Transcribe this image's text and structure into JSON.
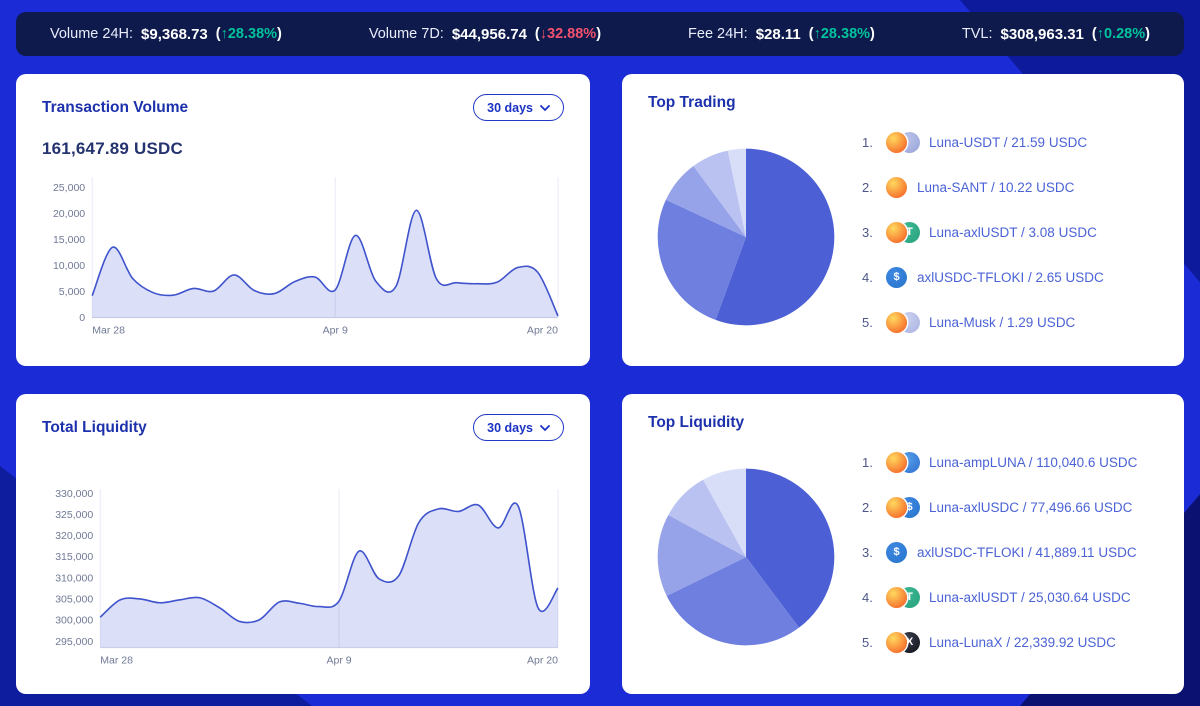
{
  "stats_bar": {
    "paren_open": "(",
    "paren_close": ")",
    "items": [
      {
        "label": "Volume 24H:",
        "value": "$9,368.73",
        "change": "↑28.38%",
        "direction": "up"
      },
      {
        "label": "Volume 7D:",
        "value": "$44,956.74",
        "change": "↓32.88%",
        "direction": "down"
      },
      {
        "label": "Fee 24H:",
        "value": "$28.11",
        "change": "↑28.38%",
        "direction": "up"
      },
      {
        "label": "TVL:",
        "value": "$308,963.31",
        "change": "↑0.28%",
        "direction": "up"
      }
    ]
  },
  "colors": {
    "page_bg": "#1b2bd6",
    "stats_bg": "#0f1a4c",
    "accent_blue": "#1a33c4",
    "up_green": "#00c39c",
    "down_red": "#f4516c",
    "chart_line": "#3f53cc",
    "chart_fill": "#d6dbf6",
    "pie_ramp": [
      "#4c5fd5",
      "#6e7fdf",
      "#96a3e9",
      "#b9c2f1",
      "#d9def8"
    ]
  },
  "cards": {
    "transaction_volume": {
      "title": "Transaction Volume",
      "period_selector": "30 days",
      "headline_value": "161,647.89 USDC"
    },
    "total_liquidity": {
      "title": "Total Liquidity",
      "period_selector": "30 days"
    },
    "top_trading": {
      "title": "Top Trading",
      "items": [
        {
          "rank": "1.",
          "label": "Luna-USDT / 21.59 USDC",
          "icons": [
            "luna",
            "moon"
          ]
        },
        {
          "rank": "2.",
          "label": "Luna-SANT / 10.22 USDC",
          "icons": [
            "luna"
          ]
        },
        {
          "rank": "3.",
          "label": "Luna-axlUSDT / 3.08 USDC",
          "icons": [
            "luna",
            "usdt"
          ]
        },
        {
          "rank": "4.",
          "label": "axlUSDC-TFLOKI / 2.65 USDC",
          "icons": [
            "usdc"
          ]
        },
        {
          "rank": "5.",
          "label": "Luna-Musk / 1.29 USDC",
          "icons": [
            "luna",
            "musk"
          ]
        }
      ]
    },
    "top_liquidity": {
      "title": "Top Liquidity",
      "items": [
        {
          "rank": "1.",
          "label": "Luna-ampLUNA / 110,040.6 USDC",
          "icons": [
            "luna",
            "ampluna"
          ]
        },
        {
          "rank": "2.",
          "label": "Luna-axlUSDC / 77,496.66 USDC",
          "icons": [
            "luna",
            "usdc"
          ]
        },
        {
          "rank": "3.",
          "label": "axlUSDC-TFLOKI / 41,889.11 USDC",
          "icons": [
            "usdc"
          ]
        },
        {
          "rank": "4.",
          "label": "Luna-axlUSDT / 25,030.64 USDC",
          "icons": [
            "luna",
            "usdt"
          ]
        },
        {
          "rank": "5.",
          "label": "Luna-LunaX / 22,339.92 USDC",
          "icons": [
            "luna",
            "lunax"
          ]
        }
      ]
    }
  },
  "icon_styles": {
    "luna": {
      "c1": "#ffd95e",
      "c2": "#f4511e",
      "glyph": "",
      "fg": "#ffffff"
    },
    "moon": {
      "c1": "#bcc4ea",
      "c2": "#98a3d8",
      "glyph": "",
      "fg": "#ffffff"
    },
    "usdt": {
      "c1": "#3db894",
      "c2": "#26a17b",
      "glyph": "T",
      "fg": "#ffffff"
    },
    "usdc": {
      "c1": "#3e87e2",
      "c2": "#2775ca",
      "glyph": "$",
      "fg": "#ffffff"
    },
    "ampluna": {
      "c1": "#56a0e8",
      "c2": "#2e6fd0",
      "glyph": "",
      "fg": "#ffffff"
    },
    "lunax": {
      "c1": "#3c3f4e",
      "c2": "#0f1118",
      "glyph": "X",
      "fg": "#ffffff"
    },
    "musk": {
      "c1": "#ccd2ef",
      "c2": "#a9b2e2",
      "glyph": "",
      "fg": "#ffffff"
    }
  },
  "chart_data": [
    {
      "name": "transaction_volume",
      "type": "area",
      "title": "Transaction Volume",
      "unit": "USDC",
      "headline_total": "161,647.89",
      "period": "30 days",
      "ylim": [
        0,
        27000
      ],
      "y_ticks": [
        0,
        5000,
        10000,
        15000,
        20000,
        25000
      ],
      "x_ticks": [
        {
          "label": "Mar 28",
          "i": 0
        },
        {
          "label": "Apr 9",
          "i": 12
        },
        {
          "label": "Apr 20",
          "i": 23
        }
      ],
      "values": [
        4200,
        13500,
        7500,
        4800,
        4300,
        5600,
        5100,
        8200,
        5200,
        4600,
        6900,
        7800,
        5300,
        15800,
        7000,
        6000,
        20600,
        7400,
        6700,
        6500,
        6800,
        9600,
        8700,
        300
      ],
      "grid": "vertical-only",
      "legend": false
    },
    {
      "name": "total_liquidity",
      "type": "area",
      "title": "Total Liquidity",
      "unit": "USDC",
      "period": "30 days",
      "ylim": [
        293500,
        331000
      ],
      "y_ticks": [
        295000,
        300000,
        305000,
        310000,
        315000,
        320000,
        325000,
        330000
      ],
      "x_ticks": [
        {
          "label": "Mar 28",
          "i": 0
        },
        {
          "label": "Apr 9",
          "i": 12
        },
        {
          "label": "Apr 20",
          "i": 23
        }
      ],
      "values": [
        300700,
        304800,
        305000,
        304100,
        304800,
        305300,
        302900,
        299700,
        300100,
        304300,
        304000,
        303200,
        304500,
        316300,
        309800,
        310500,
        323000,
        326300,
        325700,
        327200,
        321800,
        327000,
        302900,
        307600
      ],
      "grid": "vertical-only",
      "legend": false
    },
    {
      "name": "top_trading",
      "type": "pie",
      "title": "Top Trading",
      "unit": "USDC",
      "labels": [
        "Luna-USDT",
        "Luna-SANT",
        "Luna-axlUSDT",
        "axlUSDC-TFLOKI",
        "Luna-Musk"
      ],
      "values": [
        21.59,
        10.22,
        3.08,
        2.65,
        1.29
      ],
      "colors": [
        "#4c5fd5",
        "#6e7fdf",
        "#96a3e9",
        "#b9c2f1",
        "#d9def8"
      ],
      "start_angle_deg": -90,
      "direction": "clockwise",
      "legend": false
    },
    {
      "name": "top_liquidity",
      "type": "pie",
      "title": "Top Liquidity",
      "unit": "USDC",
      "labels": [
        "Luna-ampLUNA",
        "Luna-axlUSDC",
        "axlUSDC-TFLOKI",
        "Luna-axlUSDT",
        "Luna-LunaX"
      ],
      "values": [
        110040.6,
        77496.66,
        41889.11,
        25030.64,
        22339.92
      ],
      "colors": [
        "#4c5fd5",
        "#6e7fdf",
        "#96a3e9",
        "#b9c2f1",
        "#d9def8"
      ],
      "start_angle_deg": -90,
      "direction": "clockwise",
      "legend": false
    }
  ]
}
